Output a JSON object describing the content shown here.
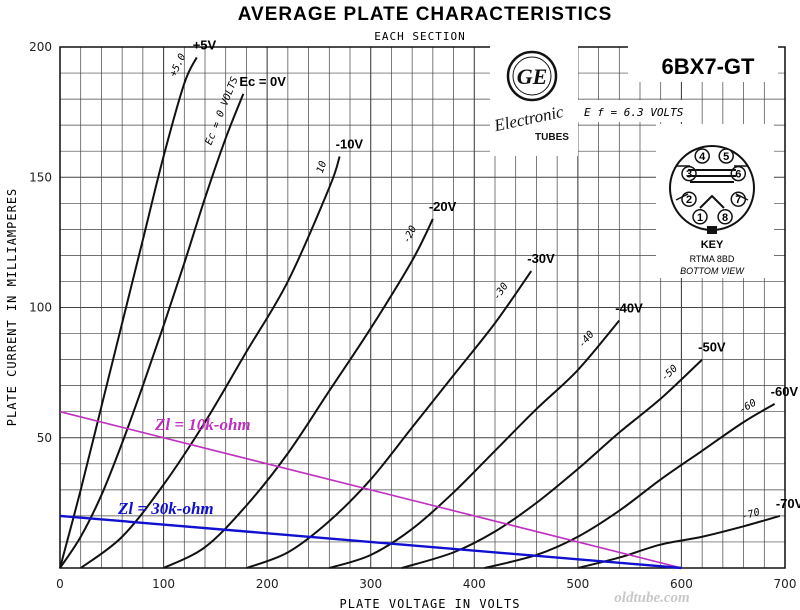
{
  "chart_data": {
    "type": "line",
    "title": "AVERAGE PLATE CHARACTERISTICS",
    "subtitle": "EACH SECTION",
    "xlabel": "PLATE VOLTAGE IN VOLTS",
    "ylabel": "PLATE CURRENT IN MILLIAMPERES",
    "xlim": [
      0,
      700
    ],
    "ylim": [
      0,
      200
    ],
    "x_ticks": [
      "0",
      "100",
      "200",
      "300",
      "400",
      "500",
      "600",
      "700"
    ],
    "y_ticks": [
      "50",
      "100",
      "150",
      "200"
    ],
    "grid": true,
    "series": [
      {
        "name": "+5V",
        "hand_label": "+5.0",
        "x": [
          0,
          20,
          40,
          60,
          80,
          100,
          120,
          132
        ],
        "y": [
          0,
          30,
          62,
          94,
          126,
          158,
          186,
          196
        ]
      },
      {
        "name": "Ec = 0V",
        "hand_label": "Ec = 0 VOLTS",
        "x": [
          0,
          20,
          40,
          60,
          80,
          100,
          120,
          140,
          160,
          177
        ],
        "y": [
          0,
          12,
          28,
          48,
          70,
          93,
          117,
          142,
          165,
          182
        ]
      },
      {
        "name": "-10V",
        "hand_label": "10",
        "x": [
          20,
          60,
          100,
          140,
          180,
          220,
          260,
          270
        ],
        "y": [
          0,
          12,
          32,
          56,
          83,
          110,
          146,
          158
        ]
      },
      {
        "name": "-20V",
        "hand_label": "-20",
        "x": [
          100,
          140,
          180,
          220,
          260,
          300,
          340,
          360
        ],
        "y": [
          0,
          8,
          24,
          44,
          68,
          92,
          118,
          134
        ]
      },
      {
        "name": "-30V",
        "hand_label": "-30",
        "x": [
          180,
          220,
          260,
          300,
          340,
          380,
          420,
          455
        ],
        "y": [
          0,
          6,
          18,
          34,
          54,
          74,
          94,
          114
        ]
      },
      {
        "name": "-40V",
        "hand_label": "-40",
        "x": [
          260,
          300,
          340,
          380,
          420,
          460,
          500,
          540
        ],
        "y": [
          0,
          5,
          15,
          29,
          45,
          61,
          76,
          95
        ]
      },
      {
        "name": "-50V",
        "hand_label": "-50",
        "x": [
          330,
          380,
          420,
          460,
          500,
          540,
          580,
          620
        ],
        "y": [
          0,
          6,
          14,
          25,
          38,
          52,
          65,
          80
        ]
      },
      {
        "name": "-60V",
        "hand_label": "-60",
        "x": [
          410,
          460,
          500,
          540,
          580,
          620,
          660,
          690
        ],
        "y": [
          0,
          5,
          12,
          22,
          34,
          45,
          56,
          63
        ]
      },
      {
        "name": "-70V",
        "hand_label": "-70",
        "x": [
          500,
          540,
          580,
          620,
          660,
          695
        ],
        "y": [
          0,
          4,
          9,
          12,
          16,
          20
        ]
      }
    ],
    "load_lines": [
      {
        "name": "Zl = 10k-ohm",
        "color": "#c030c0",
        "x": [
          0,
          600
        ],
        "y": [
          60,
          0
        ]
      },
      {
        "name": "Zl = 30k-ohm",
        "color": "#1010d0",
        "x": [
          0,
          600
        ],
        "y": [
          20,
          0
        ]
      }
    ]
  },
  "tube_type": "6BX7-GT",
  "filament_note": "E f = 6.3 VOLTS",
  "logo": {
    "text": "GE",
    "brand": "Electronic",
    "sub": "TUBES"
  },
  "base_diagram": {
    "pins": [
      "1",
      "2",
      "3",
      "4",
      "5",
      "6",
      "7",
      "8"
    ],
    "key_label": "KEY",
    "rtma": "RTMA 8BD",
    "view": "BOTTOM VIEW"
  },
  "watermark": "oldtube.com"
}
